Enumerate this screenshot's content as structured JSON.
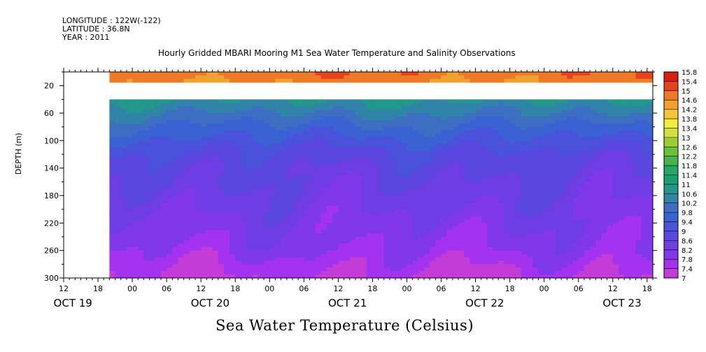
{
  "header": {
    "longitude": "LONGITUDE : 122W(-122)",
    "latitude": "LATITUDE : 36.8N",
    "year": "YEAR : 2011"
  },
  "chart_data": {
    "type": "heatmap",
    "title": "Hourly Gridded MBARI Mooring M1 Sea Water Temperature and Salinity Observations",
    "bottom_title": "Sea Water Temperature (Celsius)",
    "ylabel": "DEPTH (m)",
    "y_axis": {
      "inverted": true,
      "range": [
        0,
        300
      ],
      "ticks": [
        20,
        60,
        100,
        140,
        180,
        220,
        260,
        300
      ]
    },
    "x_axis": {
      "range_hours_from_oct19_00": [
        12,
        115
      ],
      "hour_tick_labels": [
        {
          "h": 12,
          "label": "12"
        },
        {
          "h": 18,
          "label": "18"
        },
        {
          "h": 24,
          "label": "00"
        },
        {
          "h": 30,
          "label": "06"
        },
        {
          "h": 36,
          "label": "12"
        },
        {
          "h": 42,
          "label": "18"
        },
        {
          "h": 48,
          "label": "00"
        },
        {
          "h": 54,
          "label": "06"
        },
        {
          "h": 60,
          "label": "12"
        },
        {
          "h": 66,
          "label": "18"
        },
        {
          "h": 72,
          "label": "00"
        },
        {
          "h": 78,
          "label": "06"
        },
        {
          "h": 84,
          "label": "12"
        },
        {
          "h": 90,
          "label": "18"
        },
        {
          "h": 96,
          "label": "00"
        },
        {
          "h": 102,
          "label": "06"
        },
        {
          "h": 108,
          "label": "12"
        },
        {
          "h": 114,
          "label": "18"
        }
      ],
      "day_labels": [
        {
          "h": 17,
          "label": "OCT 19"
        },
        {
          "h": 41,
          "label": "OCT 20"
        },
        {
          "h": 65,
          "label": "OCT 21"
        },
        {
          "h": 89,
          "label": "OCT 22"
        },
        {
          "h": 113,
          "label": "OCT 23"
        }
      ]
    },
    "data_start_hour": 20,
    "surface_band_depth_m": [
      0,
      13
    ],
    "gap_depth_m": [
      13,
      40
    ],
    "depth_profile": [
      {
        "depth": 0,
        "temp": 14.9
      },
      {
        "depth": 13,
        "temp": 14.7
      },
      {
        "depth": 40,
        "temp": 10.7
      },
      {
        "depth": 60,
        "temp": 10.2
      },
      {
        "depth": 80,
        "temp": 9.7
      },
      {
        "depth": 100,
        "temp": 9.3
      },
      {
        "depth": 120,
        "temp": 8.9
      },
      {
        "depth": 140,
        "temp": 8.7
      },
      {
        "depth": 160,
        "temp": 8.55
      },
      {
        "depth": 180,
        "temp": 8.4
      },
      {
        "depth": 200,
        "temp": 8.25
      },
      {
        "depth": 220,
        "temp": 8.1
      },
      {
        "depth": 240,
        "temp": 7.95
      },
      {
        "depth": 260,
        "temp": 7.8
      },
      {
        "depth": 280,
        "temp": 7.55
      },
      {
        "depth": 300,
        "temp": 7.3
      }
    ],
    "colorbar": {
      "levels": [
        7,
        7.4,
        7.8,
        8.2,
        8.6,
        9,
        9.4,
        9.8,
        10.2,
        10.6,
        11,
        11.4,
        11.8,
        12.2,
        12.6,
        13,
        13.4,
        13.8,
        14.2,
        14.6,
        15,
        15.4,
        15.8
      ],
      "colors": [
        "#c43cd8",
        "#a433f0",
        "#8038ea",
        "#6e3ee4",
        "#5b46e0",
        "#4a52dc",
        "#3a62d2",
        "#3d6ec2",
        "#2f84a8",
        "#23978c",
        "#1b9e72",
        "#25a566",
        "#48b34e",
        "#6cc13c",
        "#9ccd36",
        "#d5e040",
        "#f2ec3e",
        "#f4c43c",
        "#f1a032",
        "#ee7a28",
        "#e6421c",
        "#d62010"
      ]
    }
  }
}
